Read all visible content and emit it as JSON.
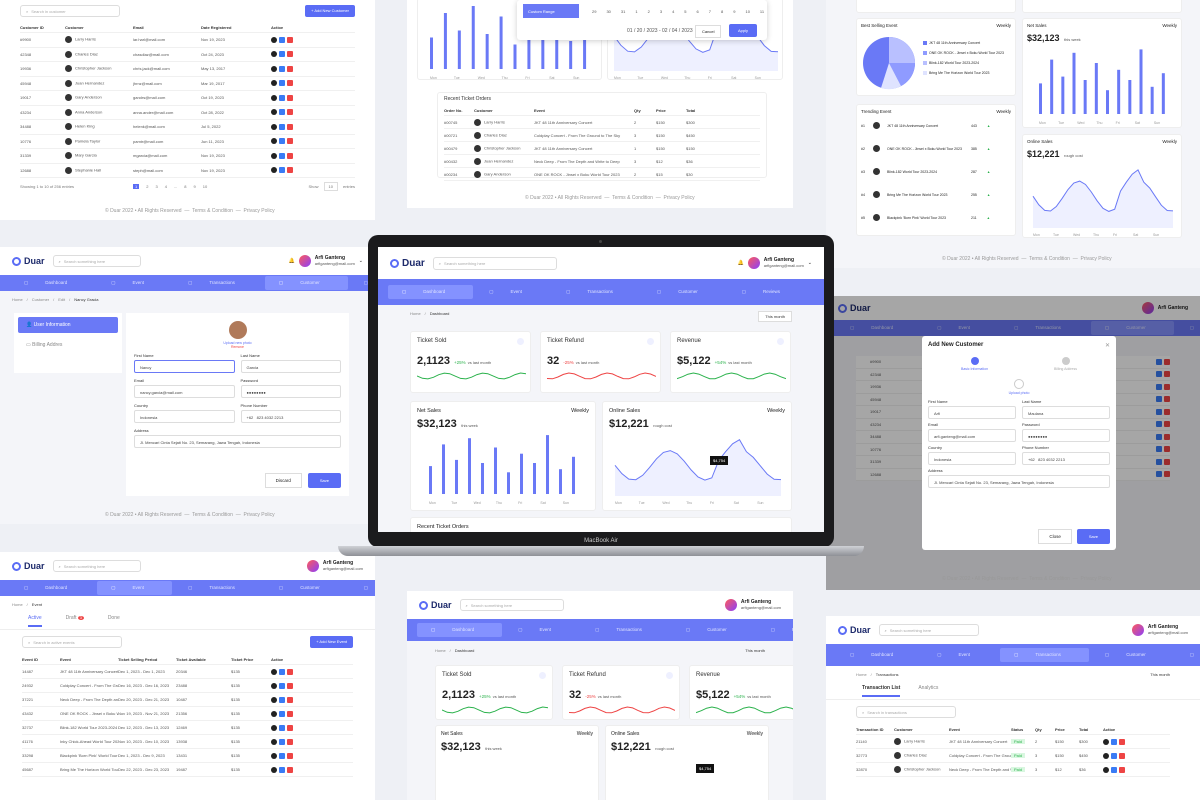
{
  "brand": "Duar",
  "search_placeholder": "Search something here",
  "user": {
    "name": "Arfi Ganteng",
    "email": "arfiganteng@mail.com"
  },
  "nav": [
    "Dashboard",
    "Event",
    "Transactions",
    "Customer",
    "Reviews",
    "Settings"
  ],
  "footer": {
    "copy": "© Duar 2022 • All Rights Reserved",
    "terms": "Terms & Condition",
    "privacy": "Privacy Policy"
  },
  "customers": {
    "search": "Search in customer",
    "add": "+ Add New Customer",
    "headers": [
      "Customer ID",
      "Customer",
      "Email",
      "Date Registered",
      "Action"
    ],
    "rows": [
      [
        "#9900",
        "Larry Harris",
        "lar.harl@mail.com",
        "Nov 19, 2023"
      ],
      [
        "42348",
        "Charles Diaz",
        "chasdiaz@mail.com",
        "Oct 24, 2023"
      ],
      [
        "19936",
        "Christopher Jackson",
        "chris.jack@mail.com",
        "May 13, 2017"
      ],
      [
        "45948",
        "Juan Hernandez",
        "jhrnz@mail.com",
        "Mar 19, 2017"
      ],
      [
        "19017",
        "Gary Anderson",
        "gandrs@mail.com",
        "Oct 19, 2023"
      ],
      [
        "43234",
        "Anna Anderson",
        "anna.ander@mail.com",
        "Oct 28, 2022"
      ],
      [
        "34488",
        "Helen King",
        "helenk@mail.com",
        "Jul 5, 2022"
      ],
      [
        "10776",
        "Pamela Taylor",
        "pamtr@mail.com",
        "Jun 11, 2023"
      ],
      [
        "31339",
        "Mary Garcia",
        "mgarcia@mail.com",
        "Nov 19, 2023"
      ],
      [
        "12688",
        "Stephanie Hall",
        "steph@mail.com",
        "Nov 19, 2023"
      ]
    ],
    "showing": "Showing 1 to 10 of 256 entries",
    "pages": [
      "1",
      "2",
      "3",
      "4",
      "...",
      "8",
      "9",
      "10"
    ],
    "show": "Show",
    "entries": "entries",
    "per": "10"
  },
  "date_picker": {
    "row": [
      "29",
      "30",
      "31",
      "1",
      "2",
      "3",
      "4",
      "5",
      "6",
      "7",
      "8",
      "9",
      "10",
      "11"
    ],
    "custom": "Custom Range",
    "range": "01 / 20 / 2023 - 02 / 04 / 2023",
    "cancel": "Cancel",
    "apply": "Apply"
  },
  "recent_orders": {
    "title": "Recent Ticket Orders",
    "headers": [
      "Order No.",
      "Customer",
      "Event",
      "Qty",
      "Price",
      "Total"
    ],
    "rows": [
      [
        "#00745",
        "Larry Harris",
        "JKT 48 11th Anniversary Concert",
        "2",
        "$150",
        "$300"
      ],
      [
        "#00721",
        "Charles Diaz",
        "Coldplay Concert - From The Ground to The Sky",
        "3",
        "$150",
        "$450"
      ],
      [
        "#00479",
        "Christopher Jackson",
        "JKT 48 11th Anniversary Concert",
        "1",
        "$150",
        "$150"
      ],
      [
        "#00432",
        "Juan Hernandez",
        "Neck Deep - From The Depth and Write to Deep",
        "3",
        "$12",
        "$36"
      ],
      [
        "#00234",
        "Gary Anderson",
        "ONE OK ROCK - Jinsei x Boku World Tour 2023",
        "2",
        "$15",
        "$30"
      ]
    ]
  },
  "best_selling": {
    "title": "Best Selling Event",
    "period": "Weekly",
    "items": [
      "JKT 48 11th Anniversary Concert",
      "ONE OK ROCK - Jinsei x Boku World Tour 2023",
      "Blink-182 World Tour 2023-2024",
      "Bring Me The Horizon World Tour 2023"
    ]
  },
  "trending": {
    "title": "Trending Event",
    "period": "Weekly",
    "items": [
      [
        "#1",
        "JKT 48 11th Anniversary Concert",
        "443"
      ],
      [
        "#2",
        "ONE OK ROCK - Jinsei x Boku World Tour 2023",
        "385"
      ],
      [
        "#3",
        "Blink-182 World Tour 2023-2024",
        "287"
      ],
      [
        "#4",
        "Bring Me The Horizon World Tour 2023",
        "255"
      ],
      [
        "#5",
        "Blackpink 'Born Pink' World Tour 2023",
        "211"
      ]
    ]
  },
  "stats": {
    "ticket_sold": {
      "label": "Ticket Sold",
      "value": "2,1123",
      "change": "+25%",
      "note": "vs last month"
    },
    "ticket_refund": {
      "label": "Ticket Refund",
      "value": "32",
      "change": "-25%",
      "note": "vs last month"
    },
    "revenue": {
      "label": "Revenue",
      "value": "$5,122",
      "change": "+54%",
      "note": "vs last month"
    },
    "net_sales": {
      "label": "Net Sales",
      "value": "$32,123",
      "note": "this week",
      "period": "Weekly"
    },
    "online_sales": {
      "label": "Online Sales",
      "value": "$12,221",
      "note": "rough cost",
      "period": "Weekly",
      "tooltip": "$4,754"
    },
    "period": "This month",
    "crumb": [
      "Home",
      "Dashboard"
    ]
  },
  "edit": {
    "crumb": [
      "Home",
      "Customer",
      "Edit",
      "Nancy Gracia"
    ],
    "tabs": [
      "User Information",
      "Billing Addres"
    ],
    "upload": "Upload new photo",
    "remove": "Remove",
    "first": "First Name",
    "first_v": "Nancy",
    "last": "Last Name",
    "last_v": "Garcia",
    "email": "Email",
    "email_v": "nancy.garcia@mail.com",
    "pass": "Password",
    "pass_v": "●●●●●●●●",
    "country": "Country",
    "country_v": "Indonesia",
    "phone": "Phone Number",
    "phone_code": "+62",
    "phone_v": "823 4032 2213",
    "address": "Address",
    "address_v": "Jl. Mencari Cinta Sejati No. 23, Semarang, Jawa Tengah, Indonesia",
    "discard": "Discard",
    "save": "Save"
  },
  "modal": {
    "title": "Add New Customer",
    "step1": "Basic Information",
    "step2": "Billing Address",
    "upload": "Upload photo",
    "first_v": "Arfi",
    "last_v": "Maulana",
    "email_v": "arfi.ganteng@mail.com",
    "pass_v": "●●●●●●●●",
    "country_v": "Indonesia",
    "phone_v": "823 4032 2213",
    "address_v": "Jl. Mencari Cinta Sejati No. 23, Semarang, Jawa Tengah, Indonesia",
    "close": "Close",
    "save": "Save"
  },
  "events": {
    "crumb": [
      "Home",
      "Event"
    ],
    "tabs": [
      "Active",
      "Draft",
      "Done"
    ],
    "draft_count": "3",
    "search": "Search in active events",
    "add": "+ Add New Event",
    "headers": [
      "Event ID",
      "Event",
      "Ticket Selling Period",
      "Ticket Available",
      "Ticket Price",
      "Action"
    ],
    "rows": [
      [
        "14487",
        "JKT 48 11th Anniversary Concert",
        "Dec 1, 2023 - Dec 1, 2023",
        "20346",
        "$135"
      ],
      [
        "24932",
        "Coldplay Concert - From The Ground to The Sky",
        "Dec 16, 2023 - Dec 16, 2023",
        "23488",
        "$135"
      ],
      [
        "37221",
        "Neck Deep - From The Depth and Write to Deep",
        "Dec 20, 2023 - Dec 21, 2023",
        "10487",
        "$135"
      ],
      [
        "43432",
        "ONE OK ROCK - Jinsei x Boku World Tour 2023",
        "Nov 19, 2023 - Nov 21, 2023",
        "21356",
        "$135"
      ],
      [
        "32737",
        "Blink-182 World Tour 2023-2024",
        "Dec 12, 2023 - Dec 13, 2023",
        "12469",
        "$135"
      ],
      [
        "41176",
        "Inky Chick-Ahead World Tour 2023",
        "Nov 10, 2023 - Dec 10, 2023",
        "13938",
        "$135"
      ],
      [
        "33298",
        "Blackpink 'Born Pink' World Tour 2023",
        "Dec 1, 2023 - Dec 9, 2023",
        "13431",
        "$135"
      ],
      [
        "45687",
        "Bring Me The Horizon World Tour 2023",
        "Dec 22, 2023 - Dec 23, 2023",
        "19487",
        "$135"
      ]
    ]
  },
  "transactions": {
    "crumb": [
      "Home",
      "Transactions"
    ],
    "period": "This month",
    "tabs": [
      "Transaction List",
      "Analytics"
    ],
    "search": "Search in transactions",
    "headers": [
      "Transaction ID",
      "Customer",
      "Event",
      "Status",
      "Qty",
      "Price",
      "Total",
      "Action"
    ],
    "rows": [
      [
        "21140",
        "Larry Harris",
        "JKT 48 11th Anniversary Concert",
        "Paid",
        "2",
        "$150",
        "$300"
      ],
      [
        "32773",
        "Charles Diaz",
        "Coldplay Concert - From The Ground to The Sky",
        "Paid",
        "3",
        "$150",
        "$450"
      ],
      [
        "32870",
        "Christopher Jackson",
        "Neck Deep - From The Depth and Write to Deep",
        "Paid",
        "3",
        "$12",
        "$36"
      ]
    ]
  },
  "macbook": "MacBook Air"
}
